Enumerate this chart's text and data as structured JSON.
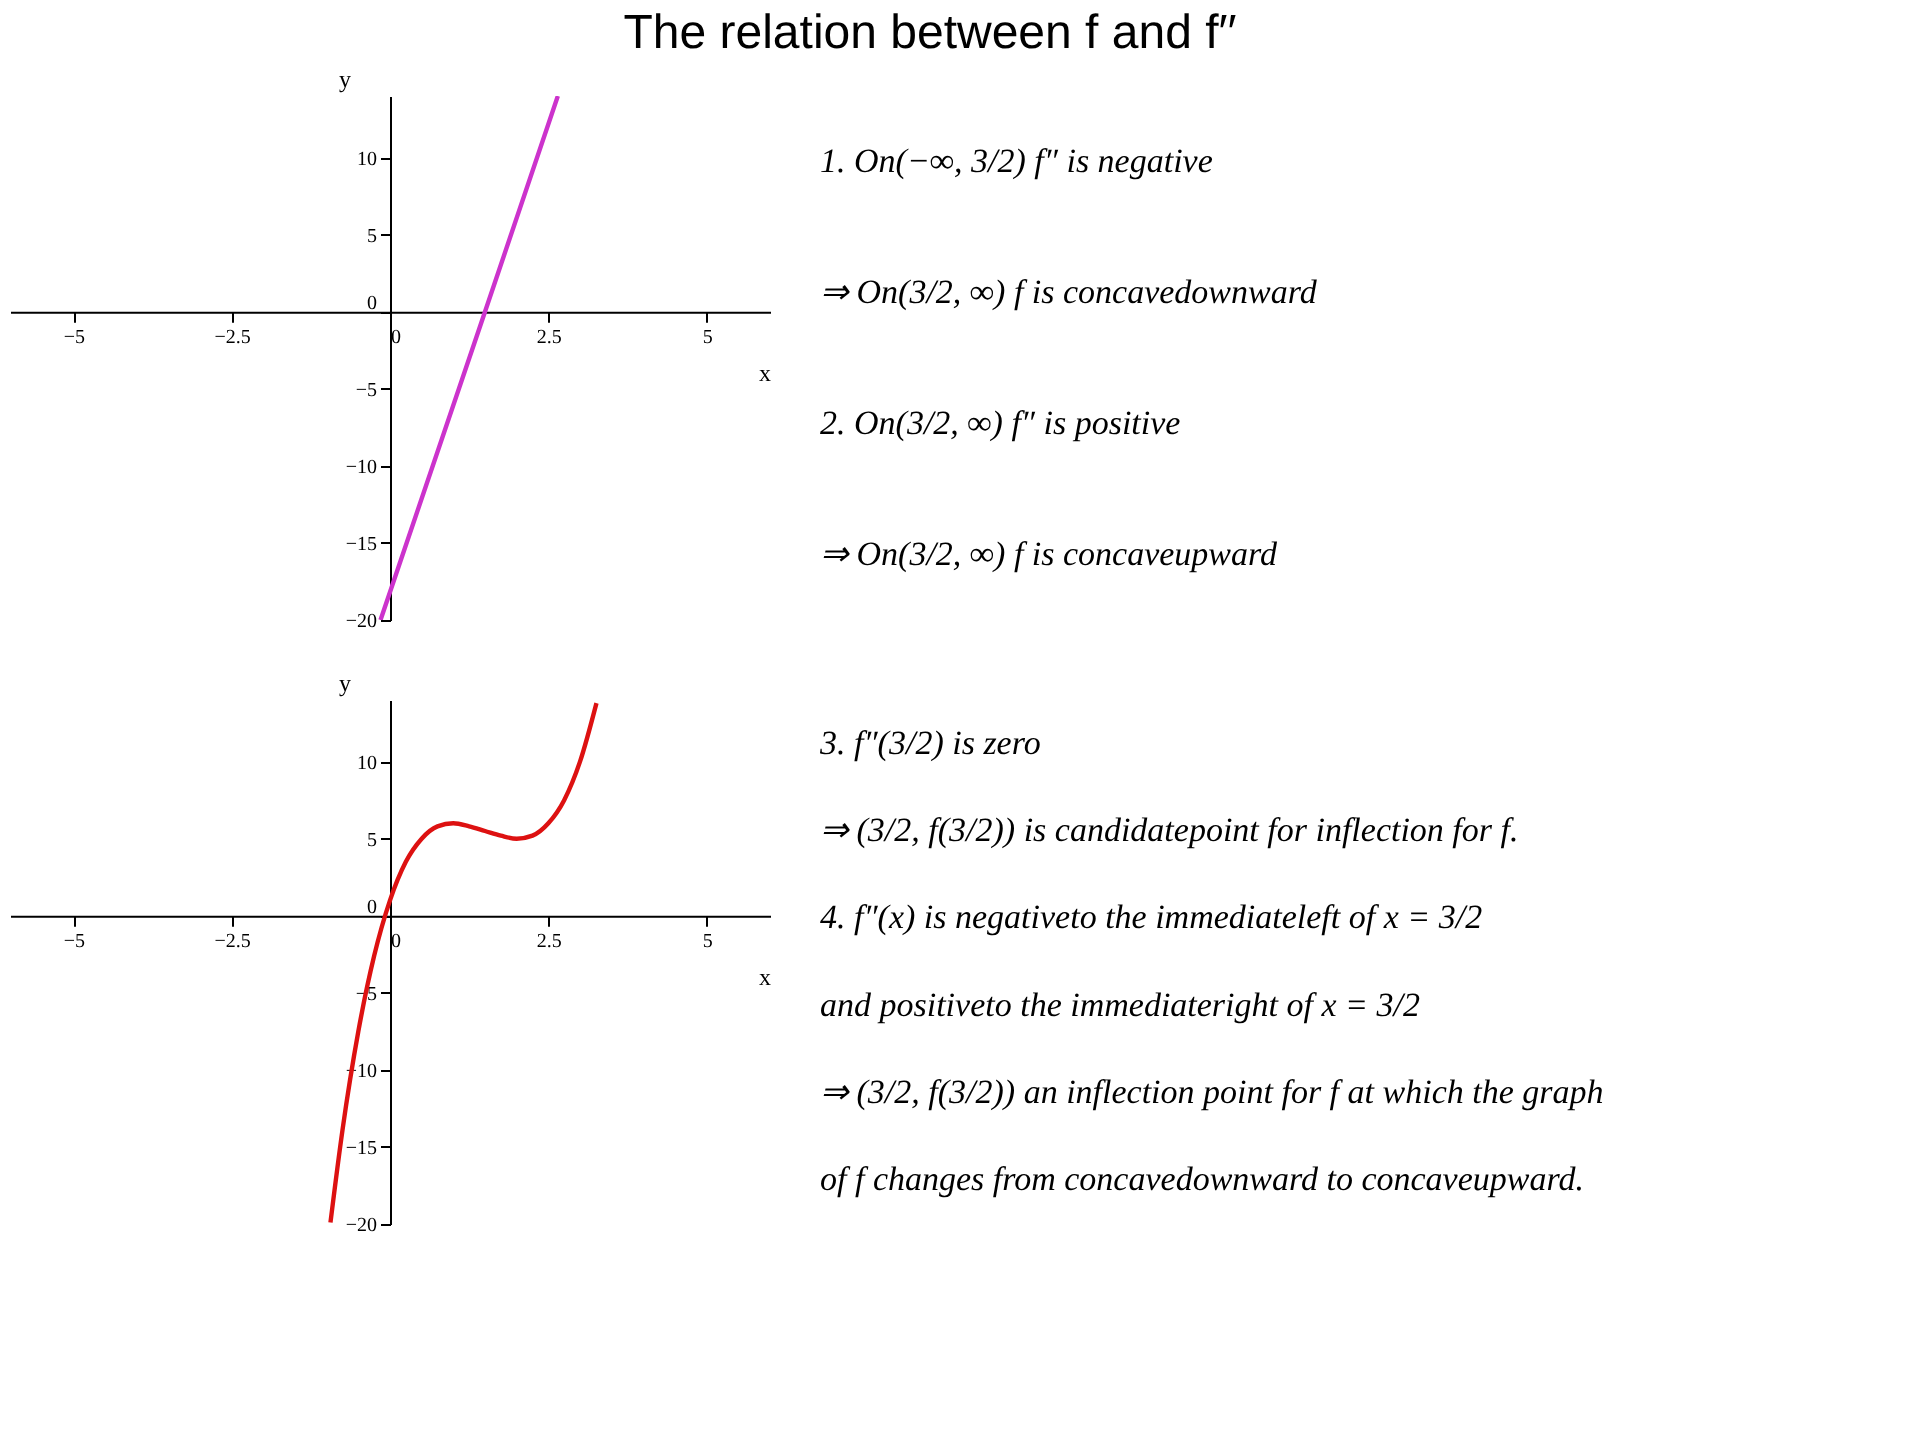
{
  "chart_data": [
    {
      "type": "line",
      "title": "The relation between f and f′′",
      "xlabel": "x",
      "ylabel": "y",
      "x": [
        -0.15,
        1.5,
        2.65
      ],
      "series": [
        {
          "color": "#cc33cc",
          "values": [
            -20,
            0,
            14
          ]
        }
      ],
      "xlim": [
        -6,
        6
      ],
      "ylim": [
        -20,
        14
      ],
      "xticks": [
        -5,
        -2.5,
        0,
        2.5,
        5
      ],
      "yticks": [
        -20,
        -15,
        -10,
        -5,
        0,
        5,
        10
      ],
      "annotations": [
        "1.  On(−∞, 3/2)  f″ is negative",
        "⇒ On(3/2, ∞)  f is concavedownward",
        "2.  On(3/2, ∞)  f″ is positive",
        "⇒ On(3/2, ∞)  f is concaveupward"
      ]
    },
    {
      "type": "line",
      "xlabel": "x",
      "ylabel": "y",
      "x": [
        -0.94,
        -0.75,
        -0.5,
        -0.25,
        0,
        0.25,
        0.5,
        0.75,
        1,
        1.25,
        1.5,
        1.75,
        2,
        2.25,
        2.5,
        2.75,
        3,
        3.26
      ],
      "series": [
        {
          "color": "#dd1111",
          "values": [
            -19.9,
            -13.9,
            -7.5,
            -2.6,
            1,
            3.5,
            5,
            5.8,
            6,
            5.8,
            5.5,
            5.2,
            5,
            5.2,
            6,
            7.5,
            10,
            13.8
          ]
        }
      ],
      "xlim": [
        -6,
        6
      ],
      "ylim": [
        -20,
        14
      ],
      "xticks": [
        -5,
        -2.5,
        0,
        2.5,
        5
      ],
      "yticks": [
        -20,
        -15,
        -10,
        -5,
        0,
        5,
        10
      ],
      "annotations": [
        "3.  f″(3/2)  is zero",
        "⇒ (3/2, f(3/2))  is candidatepoint for inflection for f.",
        "4.  f″(x) is negativeto the immediateleft of x = 3/2",
        "and positiveto the immediateright of x = 3/2",
        "⇒ (3/2, f(3/2))  an inflection point for f at which the graph",
        "of f changes from concavedownward to concaveupward."
      ]
    }
  ]
}
